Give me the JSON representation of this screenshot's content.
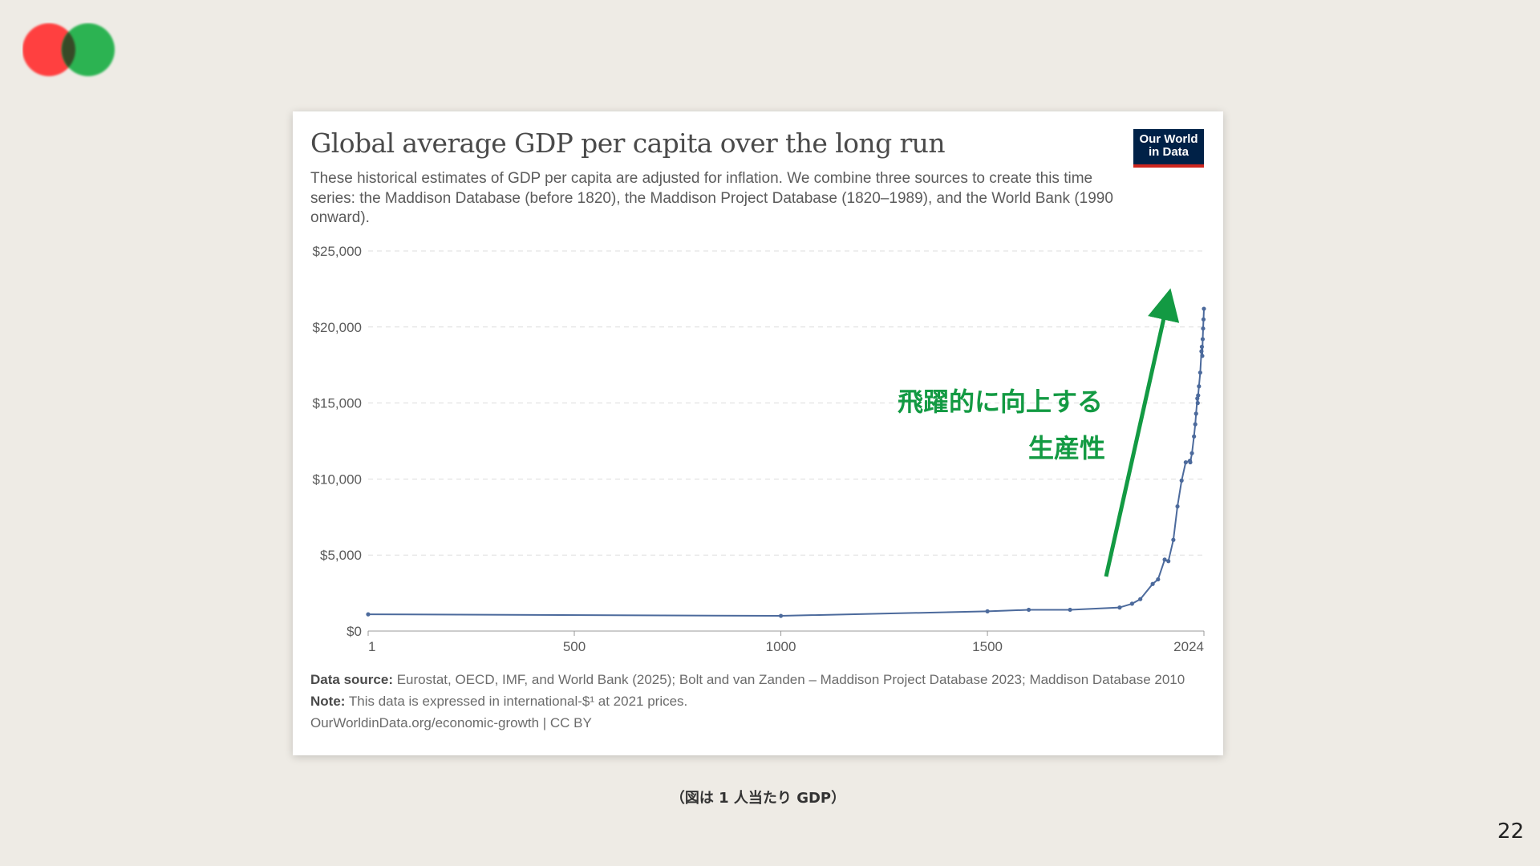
{
  "slide": {
    "caption": "（図は 1 人当たり GDP）",
    "page_number": "22"
  },
  "brand": {
    "circle_left_color": "#ff4040",
    "circle_right_color": "#22b14c",
    "owid_line1": "Our World",
    "owid_line2": "in Data"
  },
  "chart_data": {
    "type": "line",
    "title": "Global average GDP per capita over the long run",
    "subtitle": "These historical estimates of GDP per capita are adjusted for inflation. We combine three sources to create this time series: the Maddison Database (before 1820), the Maddison Project Database (1820–1989), and the World Bank (1990 onward).",
    "ylim": [
      0,
      25000
    ],
    "xlim": [
      1,
      2024
    ],
    "y_ticks": [
      0,
      5000,
      10000,
      15000,
      20000,
      25000
    ],
    "y_tick_labels": [
      "$0",
      "$5,000",
      "$10,000",
      "$15,000",
      "$20,000",
      "$25,000"
    ],
    "x_ticks": [
      1,
      500,
      1000,
      1500,
      2024
    ],
    "x_tick_labels": [
      "1",
      "500",
      "1000",
      "1500",
      "2024"
    ],
    "grid": true,
    "line_color": "#4c6a9c",
    "x": [
      1,
      1000,
      1500,
      1600,
      1700,
      1820,
      1850,
      1870,
      1900,
      1913,
      1929,
      1938,
      1950,
      1960,
      1970,
      1980,
      1990,
      1991,
      1995,
      2000,
      2003,
      2005,
      2008,
      2009,
      2010,
      2012,
      2015,
      2018,
      2019,
      2020,
      2021,
      2022,
      2023,
      2024
    ],
    "y": [
      1100,
      1000,
      1300,
      1400,
      1400,
      1550,
      1800,
      2100,
      3100,
      3400,
      4700,
      4600,
      6000,
      8200,
      9900,
      11100,
      11200,
      11100,
      11700,
      12800,
      13600,
      14300,
      15300,
      15000,
      15500,
      16100,
      17000,
      18400,
      18700,
      18100,
      19200,
      19900,
      20500,
      21200
    ],
    "annotation": {
      "line1": "飛躍的に向上する",
      "line2": "生産性",
      "color": "#139a43"
    }
  },
  "footer": {
    "source_label": "Data source:",
    "source_text": "Eurostat, OECD, IMF, and World Bank (2025); Bolt and van Zanden – Maddison Project Database 2023; Maddison Database 2010",
    "note_label": "Note:",
    "note_text": "This data is expressed in international-$¹ at 2021 prices.",
    "url": "OurWorldinData.org/economic-growth | CC BY"
  }
}
